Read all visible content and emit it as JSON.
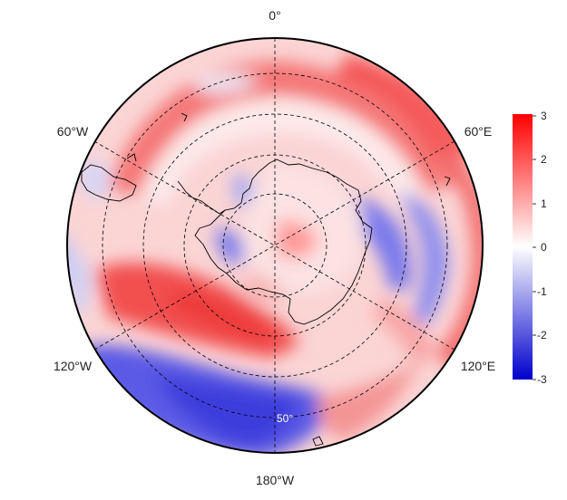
{
  "map": {
    "projection": "south-polar-stereographic",
    "longitude_labels": [
      {
        "key": "lon-0",
        "text": "0°"
      },
      {
        "key": "lon-60w",
        "text": "60°W"
      },
      {
        "key": "lon-60e",
        "text": "60°E"
      },
      {
        "key": "lon-120w",
        "text": "120°W"
      },
      {
        "key": "lon-120e",
        "text": "120°E"
      },
      {
        "key": "lon-180w",
        "text": "180°W"
      }
    ],
    "latitude_label": "50°",
    "colorbar": {
      "ticks": [
        "3",
        "2",
        "1",
        "0",
        "-1",
        "-2",
        "-3"
      ],
      "min": -3,
      "max": 3,
      "colors": {
        "low": "#0000cc",
        "mid": "#ffffff",
        "high": "#ff0000"
      }
    },
    "anomaly_regions": [
      {
        "sign": "positive",
        "strength": 0.55,
        "region": "ring near 50-60°S, 60°W–0°–60°E sector"
      },
      {
        "sign": "positive",
        "strength": 0.65,
        "region": "Ross/Amundsen sector 120°W–150°W"
      },
      {
        "sign": "negative",
        "strength": 0.75,
        "region": "Pacific 150°W–180°"
      },
      {
        "sign": "negative",
        "strength": 0.45,
        "region": "East Antarctic coast 60°E–100°E"
      },
      {
        "sign": "negative",
        "strength": 0.35,
        "region": "Weddell/Antarctic Peninsula"
      }
    ]
  }
}
